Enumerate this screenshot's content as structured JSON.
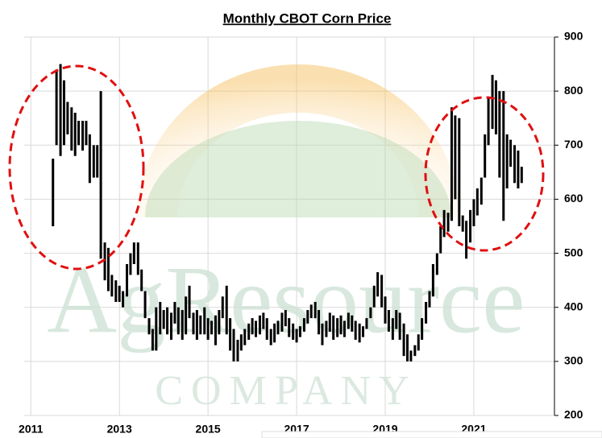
{
  "chart_data": {
    "type": "range_bar",
    "title": "Monthly CBOT Corn Price",
    "watermark": "AgResource",
    "watermark_sub": "COMPANY",
    "color": "#000000",
    "grid": true,
    "xlim": [
      2010.85,
      2022.82
    ],
    "xticks": [
      2011,
      2013,
      2015,
      2017,
      2019,
      2021
    ],
    "ylim": [
      200,
      900
    ],
    "yticks": [
      200,
      300,
      400,
      500,
      600,
      700,
      800,
      900
    ],
    "x": [
      2011.5,
      2011.58,
      2011.67,
      2011.75,
      2011.83,
      2011.92,
      2012,
      2012.08,
      2012.17,
      2012.25,
      2012.33,
      2012.42,
      2012.5,
      2012.58,
      2012.67,
      2012.75,
      2012.83,
      2012.92,
      2013,
      2013.08,
      2013.17,
      2013.25,
      2013.33,
      2013.42,
      2013.5,
      2013.58,
      2013.67,
      2013.75,
      2013.83,
      2013.92,
      2014,
      2014.08,
      2014.17,
      2014.25,
      2014.33,
      2014.42,
      2014.5,
      2014.58,
      2014.67,
      2014.75,
      2014.83,
      2014.92,
      2015,
      2015.08,
      2015.17,
      2015.25,
      2015.33,
      2015.42,
      2015.5,
      2015.58,
      2015.67,
      2015.75,
      2015.83,
      2015.92,
      2016,
      2016.08,
      2016.17,
      2016.25,
      2016.33,
      2016.42,
      2016.5,
      2016.58,
      2016.67,
      2016.75,
      2016.83,
      2016.92,
      2017,
      2017.08,
      2017.17,
      2017.25,
      2017.33,
      2017.42,
      2017.5,
      2017.58,
      2017.67,
      2017.75,
      2017.83,
      2017.92,
      2018,
      2018.08,
      2018.17,
      2018.25,
      2018.33,
      2018.42,
      2018.5,
      2018.58,
      2018.67,
      2018.75,
      2018.83,
      2018.92,
      2019,
      2019.08,
      2019.17,
      2019.25,
      2019.33,
      2019.42,
      2019.5,
      2019.58,
      2019.67,
      2019.75,
      2019.83,
      2019.92,
      2020,
      2020.08,
      2020.17,
      2020.25,
      2020.33,
      2020.42,
      2020.5,
      2020.58,
      2020.67,
      2020.75,
      2020.83,
      2020.92,
      2021,
      2021.08,
      2021.17,
      2021.25,
      2021.33,
      2021.42,
      2021.5,
      2021.58,
      2021.67,
      2021.75,
      2021.83,
      2021.92,
      2022,
      2022.08
    ],
    "high": [
      675,
      840,
      850,
      820,
      780,
      770,
      760,
      745,
      745,
      745,
      720,
      700,
      700,
      800,
      520,
      510,
      460,
      450,
      440,
      430,
      480,
      500,
      520,
      520,
      470,
      430,
      380,
      360,
      400,
      410,
      395,
      400,
      390,
      410,
      400,
      395,
      420,
      440,
      390,
      395,
      385,
      400,
      380,
      375,
      385,
      395,
      420,
      440,
      380,
      360,
      340,
      350,
      360,
      370,
      380,
      375,
      385,
      390,
      380,
      360,
      370,
      375,
      390,
      395,
      380,
      370,
      360,
      365,
      380,
      395,
      405,
      410,
      395,
      370,
      375,
      390,
      385,
      380,
      385,
      375,
      390,
      385,
      375,
      370,
      365,
      380,
      400,
      440,
      465,
      460,
      420,
      395,
      380,
      395,
      390,
      370,
      350,
      320,
      330,
      350,
      380,
      410,
      430,
      480,
      500,
      550,
      580,
      575,
      770,
      755,
      750,
      570,
      560,
      580,
      600,
      620,
      640,
      720,
      790,
      830,
      820,
      800,
      800,
      720,
      710,
      700,
      690,
      660
    ],
    "low": [
      550,
      700,
      680,
      700,
      720,
      690,
      680,
      700,
      690,
      700,
      630,
      640,
      640,
      490,
      450,
      430,
      420,
      410,
      410,
      400,
      420,
      460,
      480,
      460,
      430,
      380,
      350,
      320,
      320,
      350,
      360,
      350,
      340,
      370,
      350,
      340,
      350,
      380,
      350,
      340,
      350,
      350,
      340,
      350,
      330,
      350,
      380,
      350,
      320,
      300,
      300,
      320,
      330,
      340,
      350,
      345,
      350,
      360,
      340,
      330,
      335,
      350,
      355,
      365,
      345,
      340,
      335,
      345,
      355,
      370,
      380,
      380,
      350,
      330,
      345,
      355,
      340,
      345,
      350,
      345,
      360,
      355,
      340,
      335,
      345,
      360,
      380,
      400,
      420,
      400,
      370,
      355,
      340,
      360,
      340,
      310,
      300,
      300,
      310,
      320,
      340,
      370,
      400,
      420,
      460,
      500,
      530,
      540,
      560,
      600,
      550,
      540,
      490,
      520,
      550,
      570,
      590,
      640,
      700,
      730,
      720,
      640,
      560,
      620,
      660,
      630,
      620,
      630
    ]
  }
}
